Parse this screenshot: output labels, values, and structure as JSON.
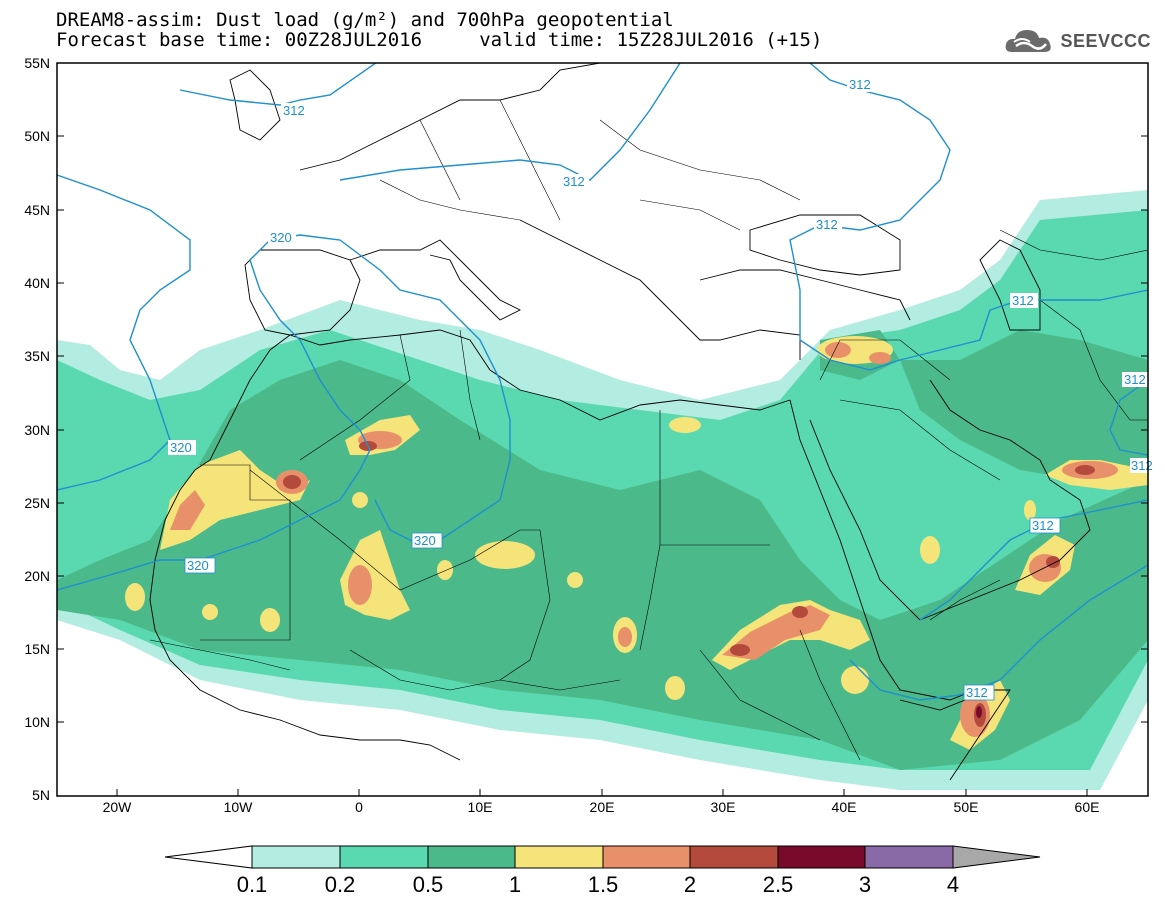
{
  "header": {
    "line1": "DREAM8-assim: Dust load (g/m²) and 700hPa geopotential",
    "line2": "Forecast base time: 00Z28JUL2016     valid time: 15Z28JUL2016 (+15)",
    "logo_text": "SEEVCCC"
  },
  "axes": {
    "lat_labels": [
      "55N",
      "50N",
      "45N",
      "40N",
      "35N",
      "30N",
      "25N",
      "20N",
      "15N",
      "10N",
      "5N"
    ],
    "lon_labels": [
      "20W",
      "10W",
      "0",
      "10E",
      "20E",
      "30E",
      "40E",
      "50E",
      "60E"
    ]
  },
  "contour_labels": [
    "320",
    "312",
    "312",
    "312",
    "320",
    "320",
    "320",
    "312",
    "312",
    "312",
    "312",
    "312",
    "312"
  ],
  "colorbar": {
    "labels": [
      "0.1",
      "0.2",
      "0.5",
      "1",
      "1.5",
      "2",
      "2.5",
      "3",
      "4"
    ],
    "colors": [
      "#ffffff",
      "#b3ece0",
      "#5ad9b0",
      "#4cb98a",
      "#f5e47a",
      "#e8906a",
      "#b34a3c",
      "#7a0a2c",
      "#8a6aa6",
      "#a8a8a8"
    ]
  },
  "colors": {
    "level1": "#b3ece0",
    "level2": "#5ad9b0",
    "level3": "#4cb98a",
    "level4": "#f5e47a",
    "level5": "#e8906a",
    "level6": "#b34a3c",
    "level7": "#7a0a2c",
    "contour": "#1e90d0"
  }
}
